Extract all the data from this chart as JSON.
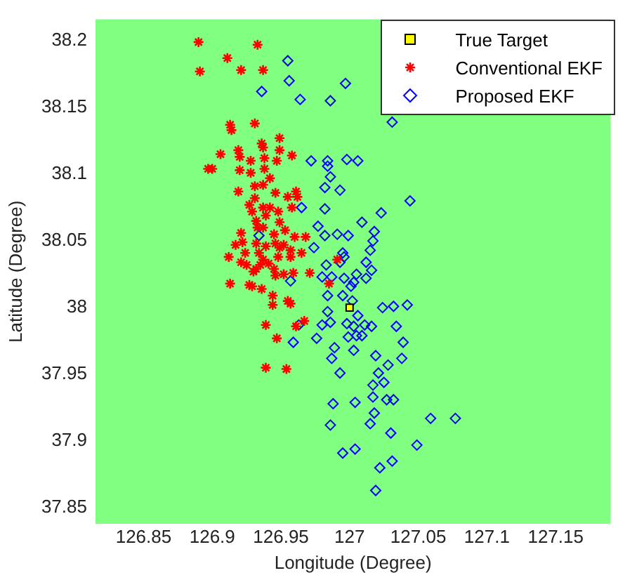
{
  "chart_data": {
    "type": "scatter",
    "xlabel": "Longitude (Degree)",
    "ylabel": "Latitude (Degree)",
    "xlim": [
      126.815,
      127.19
    ],
    "ylim": [
      37.838,
      38.216
    ],
    "xticks": [
      {
        "value": 126.85,
        "label": "126.85"
      },
      {
        "value": 126.9,
        "label": "126.9"
      },
      {
        "value": 126.95,
        "label": "126.95"
      },
      {
        "value": 127,
        "label": "127"
      },
      {
        "value": 127.05,
        "label": "127.05"
      },
      {
        "value": 127.1,
        "label": "127.1"
      },
      {
        "value": 127.15,
        "label": "127.15"
      }
    ],
    "yticks": [
      {
        "value": 37.85,
        "label": "37.85"
      },
      {
        "value": 37.9,
        "label": "37.9"
      },
      {
        "value": 37.95,
        "label": "37.95"
      },
      {
        "value": 38,
        "label": "38"
      },
      {
        "value": 38.05,
        "label": "38.05"
      },
      {
        "value": 38.1,
        "label": "38.1"
      },
      {
        "value": 38.15,
        "label": "38.15"
      },
      {
        "value": 38.2,
        "label": "38.2"
      }
    ],
    "grid": false,
    "legend": "top right",
    "series": [
      {
        "name": "True Target",
        "color": "#ffff00",
        "marker": "square",
        "x": [
          127.0
        ],
        "values": [
          38.0
        ]
      },
      {
        "name": "Conventional EKF",
        "color": "#ff0000",
        "marker": "cross",
        "x": [
          126.89,
          126.933,
          126.911,
          126.891,
          126.921,
          126.937,
          126.913,
          126.914,
          126.931,
          126.949,
          126.936,
          126.937,
          126.949,
          126.906,
          126.919,
          126.92,
          126.938,
          126.947,
          126.958,
          126.928,
          126.897,
          126.9,
          126.92,
          126.928,
          126.938,
          126.942,
          126.919,
          126.931,
          126.937,
          126.946,
          126.955,
          126.961,
          126.962,
          126.927,
          126.931,
          126.937,
          126.942,
          126.948,
          126.958,
          126.929,
          126.939,
          126.932,
          126.949,
          126.933,
          126.937,
          126.921,
          126.945,
          126.953,
          126.96,
          126.968,
          126.917,
          126.922,
          126.932,
          126.939,
          126.946,
          126.949,
          126.952,
          126.957,
          126.965,
          126.912,
          126.924,
          126.934,
          126.937,
          126.948,
          126.957,
          126.921,
          126.925,
          126.935,
          126.941,
          126.945,
          126.93,
          126.932,
          126.971,
          126.959,
          126.946,
          126.952,
          126.913,
          126.927,
          126.929,
          126.936,
          126.985,
          126.991,
          126.944,
          126.944,
          126.955,
          126.957,
          126.939,
          126.961,
          126.967,
          126.947,
          126.939,
          126.954
        ],
        "values": [
          38.199,
          38.197,
          38.187,
          38.177,
          38.178,
          38.178,
          38.137,
          38.133,
          38.138,
          38.127,
          38.123,
          38.12,
          38.118,
          38.115,
          38.118,
          38.113,
          38.112,
          38.11,
          38.114,
          38.11,
          38.104,
          38.104,
          38.103,
          38.101,
          38.104,
          38.097,
          38.087,
          38.091,
          38.092,
          38.086,
          38.083,
          38.087,
          38.083,
          38.077,
          38.082,
          38.075,
          38.075,
          38.072,
          38.075,
          38.072,
          38.069,
          38.065,
          38.064,
          38.06,
          38.06,
          38.056,
          38.055,
          38.058,
          38.053,
          38.053,
          38.047,
          38.049,
          38.048,
          38.046,
          38.048,
          38.045,
          38.047,
          38.043,
          38.041,
          38.038,
          38.041,
          38.041,
          38.036,
          38.038,
          38.038,
          38.034,
          38.032,
          38.032,
          38.033,
          38.029,
          38.027,
          38.029,
          38.026,
          38.026,
          38.024,
          38.025,
          38.018,
          38.017,
          38.016,
          38.014,
          38.018,
          38.036,
          38.009,
          38.002,
          38.005,
          38.003,
          37.987,
          37.986,
          37.99,
          37.977,
          37.955,
          37.954
        ]
      },
      {
        "name": "Proposed EKF",
        "color": "#0000ff",
        "marker": "diamond",
        "x": [
          126.955,
          126.956,
          126.997,
          126.936,
          126.964,
          126.986,
          127.031,
          126.972,
          126.984,
          126.984,
          126.998,
          127.006,
          126.986,
          126.982,
          126.993,
          127.044,
          126.965,
          126.982,
          127.023,
          127.009,
          126.977,
          126.982,
          126.991,
          126.999,
          127.018,
          127.017,
          126.974,
          127.015,
          126.995,
          126.996,
          126.934,
          126.983,
          126.993,
          127.012,
          127.016,
          127.005,
          126.98,
          126.987,
          126.996,
          127.012,
          127.003,
          127.001,
          126.957,
          126.984,
          126.995,
          127.002,
          127.024,
          127.032,
          127.042,
          126.984,
          127.006,
          126.963,
          126.98,
          126.986,
          126.998,
          127.003,
          127.011,
          127.016,
          127.034,
          126.959,
          126.976,
          126.989,
          126.999,
          127.005,
          127.009,
          127.003,
          127.039,
          126.987,
          127.019,
          127.038,
          127.028,
          126.993,
          127.021,
          127.017,
          127.025,
          127.017,
          126.988,
          127.004,
          127.027,
          127.032,
          127.018,
          127.015,
          126.986,
          127.059,
          127.077,
          127.03,
          127.049,
          126.995,
          127.004,
          127.031,
          127.022,
          127.019
        ],
        "values": [
          38.185,
          38.17,
          38.168,
          38.162,
          38.156,
          38.155,
          38.139,
          38.11,
          38.11,
          38.106,
          38.111,
          38.11,
          38.098,
          38.09,
          38.088,
          38.08,
          38.075,
          38.074,
          38.071,
          38.064,
          38.061,
          38.054,
          38.055,
          38.054,
          38.057,
          38.05,
          38.045,
          38.043,
          38.041,
          38.038,
          38.054,
          38.032,
          38.034,
          38.034,
          38.028,
          38.025,
          38.023,
          38.023,
          38.022,
          38.022,
          38.019,
          38.016,
          38.02,
          38.009,
          38.009,
          38.005,
          38.0,
          38.001,
          38.002,
          37.997,
          37.994,
          37.987,
          37.987,
          37.989,
          37.988,
          37.986,
          37.987,
          37.986,
          37.986,
          37.974,
          37.977,
          37.97,
          37.978,
          37.979,
          37.979,
          37.968,
          37.974,
          37.962,
          37.964,
          37.962,
          37.957,
          37.951,
          37.951,
          37.942,
          37.944,
          37.933,
          37.928,
          37.929,
          37.931,
          37.931,
          37.921,
          37.913,
          37.912,
          37.917,
          37.917,
          37.906,
          37.897,
          37.891,
          37.894,
          37.885,
          37.88,
          37.863
        ]
      }
    ]
  }
}
